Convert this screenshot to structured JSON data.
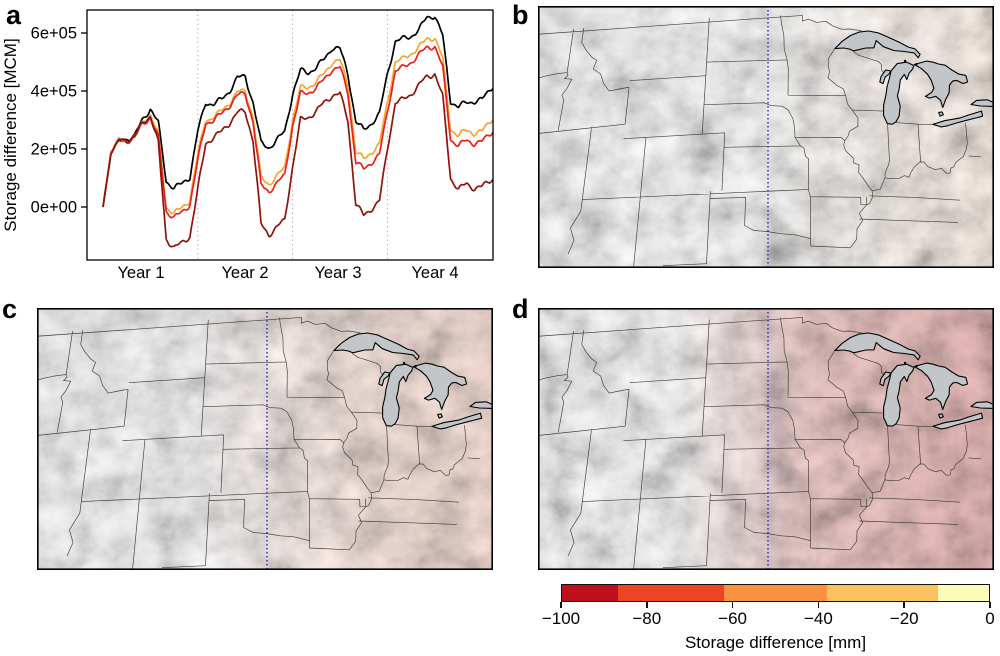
{
  "panels": {
    "a": {
      "label": "a"
    },
    "b": {
      "label": "b"
    },
    "c": {
      "label": "c"
    },
    "d": {
      "label": "d"
    }
  },
  "chart_data": {
    "type": "line",
    "title": "",
    "xlabel": "",
    "ylabel": "Storage difference [MCM]",
    "x_unit": "months",
    "x_tick_labels": [
      "Year 1",
      "Year 2",
      "Year 3",
      "Year 4"
    ],
    "y_tick_labels": [
      "0e+00",
      "2e+05",
      "4e+05",
      "6e+05"
    ],
    "y_tick_values": [
      0,
      2,
      4,
      6
    ],
    "values_scale": "1e+05 MCM",
    "ylim": [
      -1.85,
      6.8
    ],
    "year_boundaries_months": [
      12,
      24,
      36
    ],
    "x": [
      0,
      1,
      2,
      3,
      4,
      5,
      6,
      7,
      8,
      9,
      10,
      11,
      12,
      13,
      14,
      15,
      16,
      17,
      18,
      19,
      20,
      21,
      22,
      23,
      24,
      25,
      26,
      27,
      28,
      29,
      30,
      31,
      32,
      33,
      34,
      35,
      36,
      37,
      38,
      39,
      40,
      41,
      42,
      43,
      44,
      45,
      46,
      47,
      48,
      49.4
    ],
    "series": [
      {
        "name": "black",
        "color": "#000000",
        "values": [
          0.0,
          1.9,
          2.3,
          2.35,
          2.45,
          3.0,
          3.4,
          2.9,
          0.9,
          0.65,
          0.8,
          1.05,
          2.6,
          3.6,
          3.55,
          3.7,
          4.0,
          4.45,
          4.5,
          3.6,
          2.2,
          2.05,
          2.3,
          2.6,
          3.9,
          4.7,
          4.65,
          4.8,
          5.1,
          5.5,
          5.45,
          4.6,
          2.95,
          2.65,
          2.9,
          3.2,
          4.6,
          5.7,
          5.8,
          5.9,
          6.1,
          6.55,
          6.6,
          5.9,
          3.65,
          3.45,
          3.6,
          3.65,
          3.7,
          4.2
        ]
      },
      {
        "name": "orange",
        "color": "#F2A72E",
        "values": [
          0.0,
          1.9,
          2.3,
          2.3,
          2.4,
          2.9,
          3.2,
          2.5,
          0.0,
          -0.2,
          -0.05,
          0.25,
          1.8,
          3.0,
          3.1,
          3.3,
          3.6,
          3.95,
          4.0,
          3.1,
          1.0,
          0.8,
          1.05,
          1.35,
          3.0,
          4.1,
          4.15,
          4.3,
          4.6,
          5.0,
          5.05,
          4.2,
          1.9,
          1.65,
          1.9,
          2.15,
          3.6,
          5.0,
          5.1,
          5.3,
          5.5,
          5.8,
          5.85,
          5.1,
          2.7,
          2.45,
          2.65,
          2.55,
          2.6,
          3.1
        ]
      },
      {
        "name": "red",
        "color": "#E8211C",
        "values": [
          0.0,
          1.85,
          2.25,
          2.28,
          2.38,
          2.85,
          3.1,
          2.4,
          -0.15,
          -0.35,
          -0.2,
          0.1,
          1.6,
          2.9,
          3.0,
          3.2,
          3.5,
          3.85,
          3.9,
          2.95,
          0.75,
          0.55,
          0.8,
          1.1,
          2.8,
          3.9,
          3.95,
          4.1,
          4.4,
          4.75,
          4.8,
          3.95,
          1.55,
          1.3,
          1.55,
          1.8,
          3.3,
          4.7,
          4.8,
          5.0,
          5.25,
          5.5,
          5.55,
          4.8,
          2.35,
          2.1,
          2.3,
          2.2,
          2.25,
          2.65
        ]
      },
      {
        "name": "dark_red",
        "color": "#8E1309",
        "values": [
          0.0,
          1.85,
          2.3,
          2.32,
          2.42,
          2.9,
          3.15,
          2.2,
          -1.1,
          -1.4,
          -1.25,
          -1.0,
          0.6,
          2.2,
          2.4,
          2.6,
          2.9,
          3.25,
          3.3,
          2.3,
          -0.6,
          -0.95,
          -0.7,
          -0.45,
          1.4,
          3.0,
          3.1,
          3.3,
          3.6,
          3.85,
          3.9,
          3.0,
          0.1,
          -0.3,
          -0.05,
          0.2,
          2.0,
          3.6,
          3.7,
          3.9,
          4.2,
          4.5,
          4.6,
          3.8,
          1.0,
          0.6,
          0.8,
          0.65,
          0.7,
          1.0
        ]
      }
    ]
  },
  "colorbar": {
    "title": "Storage difference [mm]",
    "tick_labels": [
      "−100",
      "−80",
      "−60",
      "−40",
      "−20",
      "0"
    ],
    "boundaries": [
      -100,
      -87,
      -62,
      -38,
      -12,
      0
    ],
    "colors": [
      "#BE0F1C",
      "#EF4423",
      "#F99240",
      "#FBC15F",
      "#FDFBB9"
    ]
  },
  "map": {
    "lake_color": "#C2C6C9",
    "state_line_color": "#2E2E20",
    "divider_color": "#2020B0",
    "frame_color": "#000000"
  }
}
